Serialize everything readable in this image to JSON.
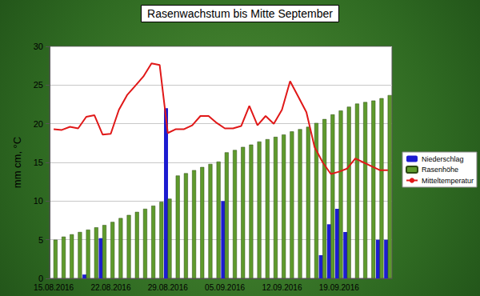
{
  "chart_data": {
    "type": "bar",
    "title": "Rasenwachstum bis Mitte September",
    "y_label": "mm cm, °C",
    "categories": [
      "15.08.2016",
      null,
      null,
      null,
      null,
      null,
      null,
      "22.08.2016",
      null,
      null,
      null,
      null,
      null,
      null,
      "29.08.2016",
      null,
      null,
      null,
      null,
      null,
      null,
      "05.09.2016",
      null,
      null,
      null,
      null,
      null,
      null,
      "12.09.2016",
      null,
      null,
      null,
      null,
      null,
      null,
      "19.09.2016",
      null,
      null,
      null,
      null,
      null,
      null
    ],
    "series": [
      {
        "name": "Niederschlag",
        "type": "bar",
        "color": "#1c1cd0",
        "values": [
          0,
          0,
          0,
          0,
          0.5,
          0,
          5.2,
          0,
          0,
          0,
          0,
          0,
          0,
          0,
          22,
          0,
          0,
          0,
          0,
          0,
          0,
          10,
          0,
          0,
          0,
          0,
          0,
          0,
          0,
          0,
          0,
          0,
          0,
          3,
          7,
          9,
          6,
          0,
          0,
          0,
          5,
          5
        ]
      },
      {
        "name": "Rasenhöhe",
        "type": "bar",
        "color": "#5e9a2c",
        "values": [
          5.0,
          5.4,
          5.7,
          6.0,
          6.3,
          6.6,
          6.9,
          7.3,
          7.8,
          8.2,
          8.6,
          9.0,
          9.4,
          9.9,
          10.3,
          13.3,
          13.6,
          14.0,
          14.4,
          14.8,
          15.1,
          16.3,
          16.6,
          17.0,
          17.3,
          17.7,
          18.0,
          18.3,
          18.6,
          19.0,
          19.3,
          19.6,
          20.1,
          20.6,
          21.2,
          21.7,
          22.2,
          22.6,
          22.8,
          23.0,
          23.3,
          23.7
        ]
      },
      {
        "name": "Mitteltemperatur",
        "type": "line",
        "color": "#e01818",
        "values": [
          19.3,
          19.2,
          19.6,
          19.4,
          20.9,
          21.1,
          18.6,
          18.7,
          21.8,
          23.7,
          24.9,
          26.1,
          27.8,
          27.6,
          18.8,
          19.3,
          19.3,
          19.8,
          21.0,
          21.0,
          20.1,
          19.4,
          19.4,
          19.7,
          22.3,
          19.8,
          21.0,
          20.0,
          21.8,
          25.5,
          23.5,
          21.5,
          17.0,
          15.0,
          13.5,
          13.8,
          14.2,
          15.5,
          15.0,
          14.5,
          14.0,
          14.0
        ]
      }
    ],
    "ylim": [
      0,
      30
    ],
    "yticks": [
      0,
      5,
      10,
      15,
      20,
      25,
      30
    ],
    "grid": true,
    "legend": "right"
  }
}
